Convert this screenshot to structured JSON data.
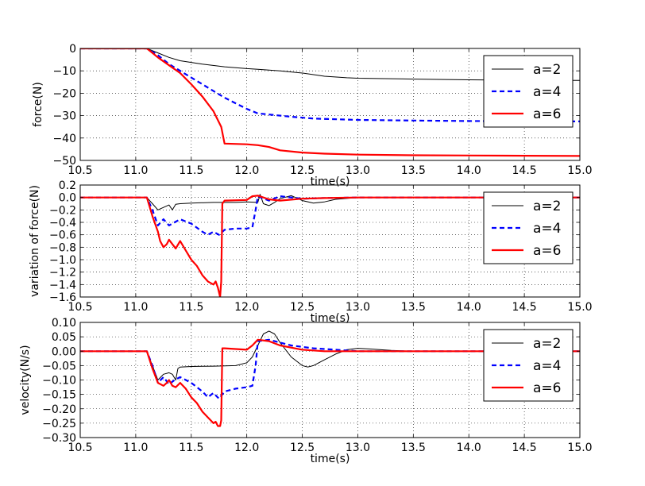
{
  "figure": {
    "background": "#ffffff"
  },
  "series_styles": [
    {
      "name": "a=2",
      "color": "#000000",
      "dash": "solid",
      "width": 1
    },
    {
      "name": "a=4",
      "color": "#0000ff",
      "dash": "dashed",
      "width": 2.2
    },
    {
      "name": "a=6",
      "color": "#ff0000",
      "dash": "solid",
      "width": 2.2
    }
  ],
  "chart_data": [
    {
      "type": "line",
      "title": "",
      "xlabel": "time(s)",
      "ylabel": "force(N)",
      "xlim": [
        10.5,
        15.0
      ],
      "ylim": [
        -50,
        0
      ],
      "xticks": [
        10.5,
        11.0,
        11.5,
        12.0,
        12.5,
        13.0,
        13.5,
        14.0,
        14.5,
        15.0
      ],
      "xtick_labels": [
        "10.5",
        "11.0",
        "11.5",
        "12.0",
        "12.5",
        "13.0",
        "13.5",
        "14.0",
        "14.5",
        "15.0"
      ],
      "yticks": [
        0,
        -10,
        -20,
        -30,
        -40,
        -50
      ],
      "ytick_labels": [
        "0",
        "−10",
        "−20",
        "−30",
        "−40",
        "−50"
      ],
      "grid": true,
      "legend_position": "top-right",
      "series": [
        {
          "name": "a=2",
          "x": [
            10.5,
            11.1,
            11.2,
            11.3,
            11.4,
            11.6,
            11.8,
            12.0,
            12.1,
            12.3,
            12.5,
            12.7,
            12.9,
            13.0,
            13.5,
            14.0,
            14.5,
            15.0
          ],
          "y": [
            0,
            0,
            -2,
            -4,
            -5.5,
            -7,
            -8.2,
            -9,
            -9.3,
            -10,
            -11,
            -12.4,
            -13.1,
            -13.3,
            -13.7,
            -14,
            -14.2,
            -14.3
          ]
        },
        {
          "name": "a=4",
          "x": [
            10.5,
            11.1,
            11.2,
            11.3,
            11.4,
            11.5,
            11.6,
            11.7,
            11.8,
            11.9,
            12.0,
            12.1,
            12.2,
            12.4,
            12.6,
            13.0,
            13.5,
            14.0,
            14.5,
            15.0
          ],
          "y": [
            0,
            0,
            -3,
            -7,
            -10,
            -13,
            -16,
            -19,
            -22,
            -24.5,
            -27,
            -29,
            -29.5,
            -30.5,
            -31.3,
            -31.9,
            -32.2,
            -32.4,
            -32.5,
            -32.6
          ]
        },
        {
          "name": "a=6",
          "x": [
            10.5,
            11.1,
            11.15,
            11.2,
            11.3,
            11.4,
            11.5,
            11.6,
            11.7,
            11.77,
            11.8,
            12.0,
            12.1,
            12.2,
            12.3,
            12.5,
            12.7,
            13.0,
            13.5,
            14.0,
            14.5,
            15.0
          ],
          "y": [
            0,
            0,
            -2,
            -4,
            -7.5,
            -11,
            -16,
            -21.5,
            -28,
            -35,
            -42.5,
            -42.8,
            -43.2,
            -44,
            -45.5,
            -46.5,
            -47,
            -47.4,
            -47.7,
            -47.8,
            -47.9,
            -48
          ]
        }
      ]
    },
    {
      "type": "line",
      "title": "",
      "xlabel": "time(s)",
      "ylabel": "variation of force(N)",
      "xlim": [
        10.5,
        15.0
      ],
      "ylim": [
        -1.6,
        0.2
      ],
      "xticks": [
        10.5,
        11.0,
        11.5,
        12.0,
        12.5,
        13.0,
        13.5,
        14.0,
        14.5,
        15.0
      ],
      "xtick_labels": [
        "10.5",
        "11.0",
        "11.5",
        "12.0",
        "12.5",
        "13.0",
        "13.5",
        "14.0",
        "14.5",
        "15.0"
      ],
      "yticks": [
        0.2,
        0.0,
        -0.2,
        -0.4,
        -0.6,
        -0.8,
        -1.0,
        -1.2,
        -1.4,
        -1.6
      ],
      "ytick_labels": [
        "0.2",
        "0.0",
        "−0.2",
        "−0.4",
        "−0.6",
        "−0.8",
        "−1.0",
        "−1.2",
        "−1.4",
        "−1.6"
      ],
      "grid": true,
      "legend_position": "top-right",
      "series": [
        {
          "name": "a=2",
          "x": [
            10.5,
            11.1,
            11.15,
            11.2,
            11.25,
            11.3,
            11.33,
            11.36,
            11.4,
            11.5,
            11.7,
            11.9,
            12.0,
            12.1,
            12.12,
            12.15,
            12.2,
            12.25,
            12.3,
            12.4,
            12.5,
            12.6,
            12.7,
            12.8,
            13.0,
            13.5,
            14.0,
            15.0
          ],
          "y": [
            0,
            0,
            -0.1,
            -0.2,
            -0.16,
            -0.12,
            -0.2,
            -0.11,
            -0.1,
            -0.09,
            -0.08,
            -0.08,
            -0.07,
            -0.08,
            0.05,
            -0.1,
            -0.13,
            -0.08,
            -0.02,
            0.03,
            -0.05,
            -0.09,
            -0.07,
            -0.03,
            0.0,
            0.0,
            0.0,
            0.0
          ]
        },
        {
          "name": "a=4",
          "x": [
            10.5,
            11.1,
            11.15,
            11.2,
            11.25,
            11.3,
            11.35,
            11.4,
            11.5,
            11.6,
            11.65,
            11.7,
            11.75,
            11.8,
            11.9,
            12.0,
            12.05,
            12.08,
            12.1,
            12.2,
            12.3,
            12.5,
            12.7,
            13.0,
            13.5,
            14.0,
            15.0
          ],
          "y": [
            0,
            0,
            -0.2,
            -0.45,
            -0.35,
            -0.45,
            -0.4,
            -0.35,
            -0.42,
            -0.55,
            -0.6,
            -0.55,
            -0.6,
            -0.52,
            -0.5,
            -0.5,
            -0.48,
            -0.2,
            0.02,
            -0.05,
            0.02,
            -0.02,
            -0.01,
            0.0,
            0.0,
            0.0,
            0.0
          ]
        },
        {
          "name": "a=6",
          "x": [
            10.5,
            11.1,
            11.15,
            11.2,
            11.22,
            11.25,
            11.28,
            11.3,
            11.33,
            11.36,
            11.4,
            11.45,
            11.5,
            11.55,
            11.6,
            11.65,
            11.7,
            11.72,
            11.74,
            11.76,
            11.77,
            11.78,
            11.8,
            12.0,
            12.05,
            12.1,
            12.2,
            12.3,
            12.5,
            12.7,
            13.0,
            13.5,
            14.0,
            15.0
          ],
          "y": [
            0,
            0,
            -0.3,
            -0.55,
            -0.7,
            -0.8,
            -0.75,
            -0.68,
            -0.75,
            -0.82,
            -0.7,
            -0.85,
            -1.0,
            -1.1,
            -1.25,
            -1.35,
            -1.4,
            -1.35,
            -1.45,
            -1.6,
            -1.35,
            -0.1,
            -0.05,
            -0.04,
            0.02,
            0.03,
            -0.03,
            -0.05,
            -0.02,
            -0.01,
            0.0,
            0.0,
            0.0,
            0.0
          ]
        }
      ]
    },
    {
      "type": "line",
      "title": "",
      "xlabel": "time(s)",
      "ylabel": "velocity(N/s)",
      "xlim": [
        10.5,
        15.0
      ],
      "ylim": [
        -0.3,
        0.1
      ],
      "xticks": [
        10.5,
        11.0,
        11.5,
        12.0,
        12.5,
        13.0,
        13.5,
        14.0,
        14.5,
        15.0
      ],
      "xtick_labels": [
        "10.5",
        "11.0",
        "11.5",
        "12.0",
        "12.5",
        "13.0",
        "13.5",
        "14.0",
        "14.5",
        "15.0"
      ],
      "yticks": [
        0.1,
        0.05,
        0.0,
        -0.05,
        -0.1,
        -0.15,
        -0.2,
        -0.25,
        -0.3
      ],
      "ytick_labels": [
        "0.10",
        "0.05",
        "0.00",
        "−0.05",
        "−0.10",
        "−0.15",
        "−0.20",
        "−0.25",
        "−0.30"
      ],
      "grid": true,
      "legend_position": "top-right",
      "series": [
        {
          "name": "a=2",
          "x": [
            10.5,
            11.1,
            11.15,
            11.2,
            11.25,
            11.3,
            11.33,
            11.36,
            11.38,
            11.4,
            11.5,
            11.7,
            11.9,
            12.0,
            12.05,
            12.1,
            12.15,
            12.2,
            12.25,
            12.3,
            12.4,
            12.5,
            12.55,
            12.6,
            12.7,
            12.8,
            12.9,
            13.0,
            13.1,
            13.3,
            13.5,
            14.0,
            15.0
          ],
          "y": [
            0,
            0,
            -0.05,
            -0.1,
            -0.08,
            -0.075,
            -0.08,
            -0.1,
            -0.06,
            -0.055,
            -0.053,
            -0.052,
            -0.05,
            -0.04,
            -0.02,
            0.02,
            0.06,
            0.07,
            0.06,
            0.03,
            -0.02,
            -0.05,
            -0.055,
            -0.05,
            -0.03,
            -0.01,
            0.005,
            0.01,
            0.008,
            0.003,
            0.0,
            0.0,
            0.0
          ]
        },
        {
          "name": "a=4",
          "x": [
            10.5,
            11.1,
            11.15,
            11.2,
            11.25,
            11.3,
            11.35,
            11.4,
            11.5,
            11.6,
            11.65,
            11.7,
            11.75,
            11.8,
            11.9,
            12.0,
            12.05,
            12.08,
            12.1,
            12.2,
            12.3,
            12.4,
            12.6,
            12.8,
            13.0,
            13.5,
            14.0,
            15.0
          ],
          "y": [
            0,
            0,
            -0.05,
            -0.11,
            -0.09,
            -0.115,
            -0.1,
            -0.09,
            -0.11,
            -0.14,
            -0.16,
            -0.145,
            -0.165,
            -0.14,
            -0.13,
            -0.125,
            -0.12,
            -0.05,
            0.035,
            0.04,
            0.03,
            0.02,
            0.01,
            0.005,
            0.0,
            0.0,
            0.0,
            0.0
          ]
        },
        {
          "name": "a=6",
          "x": [
            10.5,
            11.1,
            11.15,
            11.2,
            11.25,
            11.28,
            11.3,
            11.33,
            11.36,
            11.4,
            11.45,
            11.5,
            11.55,
            11.6,
            11.65,
            11.7,
            11.72,
            11.74,
            11.76,
            11.77,
            11.78,
            11.8,
            12.0,
            12.05,
            12.1,
            12.2,
            12.3,
            12.5,
            12.7,
            13.0,
            13.5,
            14.0,
            15.0
          ],
          "y": [
            0,
            0,
            -0.06,
            -0.11,
            -0.12,
            -0.11,
            -0.1,
            -0.12,
            -0.125,
            -0.11,
            -0.13,
            -0.16,
            -0.18,
            -0.21,
            -0.23,
            -0.25,
            -0.245,
            -0.26,
            -0.26,
            -0.24,
            0.01,
            0.01,
            0.005,
            0.02,
            0.04,
            0.035,
            0.02,
            0.005,
            0.0,
            0.0,
            0.0,
            0.0,
            0.0
          ]
        }
      ]
    }
  ]
}
